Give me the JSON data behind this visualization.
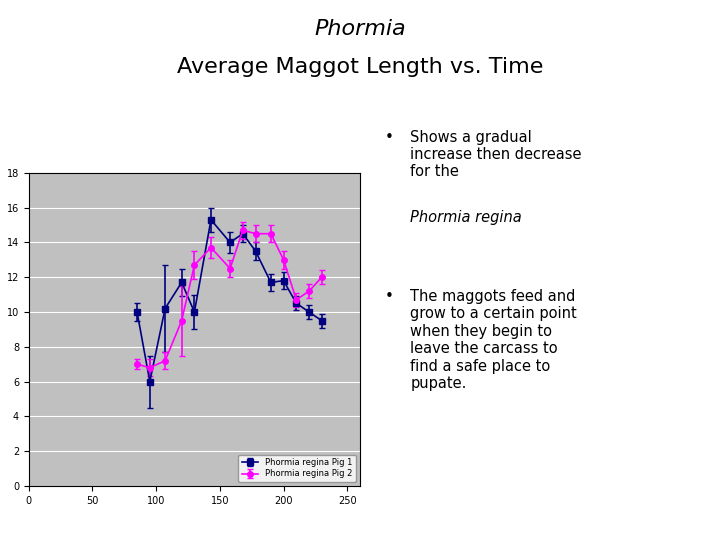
{
  "title_line1": "Phormia",
  "title_line2": "Average Maggot Length vs. Time",
  "pig1_x": [
    85,
    95,
    107,
    120,
    130,
    143,
    158,
    168,
    178,
    190,
    200,
    210,
    220,
    230
  ],
  "pig1_y": [
    10.0,
    6.0,
    10.2,
    11.7,
    10.0,
    15.3,
    14.0,
    14.5,
    13.5,
    11.7,
    11.8,
    10.5,
    10.0,
    9.5
  ],
  "pig1_yerr": [
    0.5,
    1.5,
    2.5,
    0.8,
    1.0,
    0.7,
    0.6,
    0.5,
    0.5,
    0.5,
    0.5,
    0.4,
    0.4,
    0.4
  ],
  "pig2_x": [
    85,
    95,
    107,
    120,
    130,
    143,
    158,
    168,
    178,
    190,
    200,
    210,
    220,
    230
  ],
  "pig2_y": [
    7.0,
    6.8,
    7.2,
    9.5,
    12.7,
    13.7,
    12.5,
    14.7,
    14.5,
    14.5,
    13.0,
    10.7,
    11.2,
    12.0
  ],
  "pig2_yerr": [
    0.3,
    0.5,
    0.5,
    2.0,
    0.8,
    0.6,
    0.5,
    0.5,
    0.5,
    0.5,
    0.5,
    0.4,
    0.4,
    0.4
  ],
  "pig1_color": "#000080",
  "pig2_color": "#FF00FF",
  "pig1_label": "Phormia regina Pig 1",
  "pig2_label": "Phormia regina Pig 2",
  "xlim": [
    0,
    260
  ],
  "ylim": [
    0,
    18
  ],
  "xticks": [
    0,
    50,
    100,
    150,
    200,
    250
  ],
  "yticks": [
    0,
    2,
    4,
    6,
    8,
    10,
    12,
    14,
    16,
    18
  ],
  "bg_color": "#c0c0c0",
  "bullet1_text": "Shows a gradual\nincrease then decrease\nfor the ",
  "bullet1_italic": "Phormia regina",
  "bullet2_text": "The maggots feed and\ngrow to a certain point\nwhen they begin to\nleave the carcass to\nfind a safe place to\npupate."
}
